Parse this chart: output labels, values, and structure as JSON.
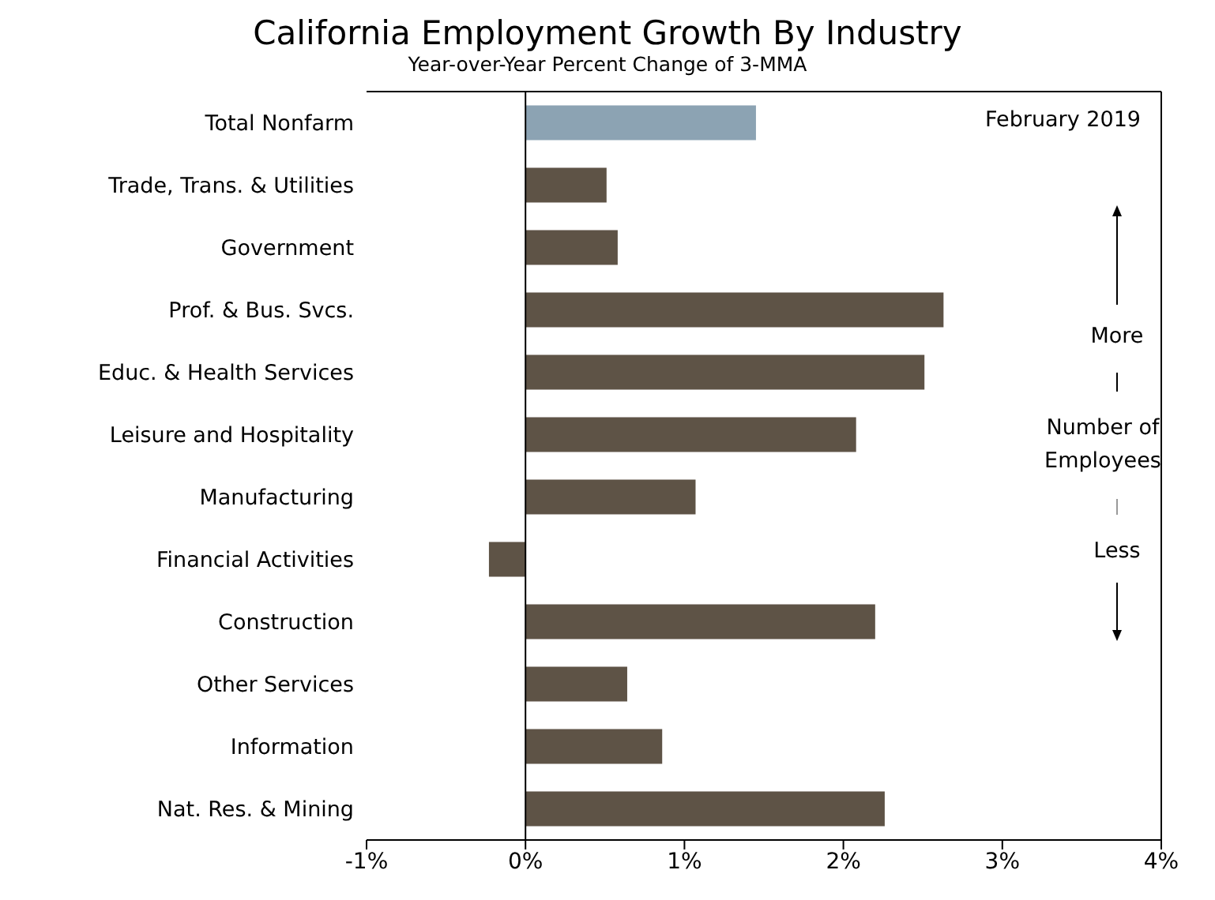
{
  "chart_data": {
    "type": "bar",
    "orientation": "horizontal",
    "title": "California Employment Growth By Industry",
    "subtitle": "Year-over-Year Percent Change of 3-MMA",
    "categories": [
      "Total Nonfarm",
      "Trade, Trans. & Utilities",
      "Government",
      "Prof. & Bus. Svcs.",
      "Educ. & Health Services",
      "Leisure and Hospitality",
      "Manufacturing",
      "Financial Activities",
      "Construction",
      "Other Services",
      "Information",
      "Nat. Res. & Mining"
    ],
    "values": [
      1.45,
      0.51,
      0.58,
      2.63,
      2.51,
      2.08,
      1.07,
      -0.23,
      2.2,
      0.64,
      0.86,
      2.26
    ],
    "colors": [
      "#8ca3b3",
      "#5e5346",
      "#5e5346",
      "#5e5346",
      "#5e5346",
      "#5e5346",
      "#5e5346",
      "#5e5346",
      "#5e5346",
      "#5e5346",
      "#5e5346",
      "#5e5346"
    ],
    "xlim": [
      -1,
      4
    ],
    "xticks": [
      {
        "value": -1,
        "label": "-1%"
      },
      {
        "value": 0,
        "label": "0%"
      },
      {
        "value": 1,
        "label": "1%"
      },
      {
        "value": 2,
        "label": "2%"
      },
      {
        "value": 3,
        "label": "3%"
      },
      {
        "value": 4,
        "label": "4%"
      }
    ],
    "ref_lines": [
      {
        "axis": "x",
        "value": 0,
        "color": "#000000"
      }
    ],
    "annotations": [
      "February 2019",
      "More",
      "Number of Employees",
      "Less"
    ],
    "tick_labels": "xy"
  }
}
